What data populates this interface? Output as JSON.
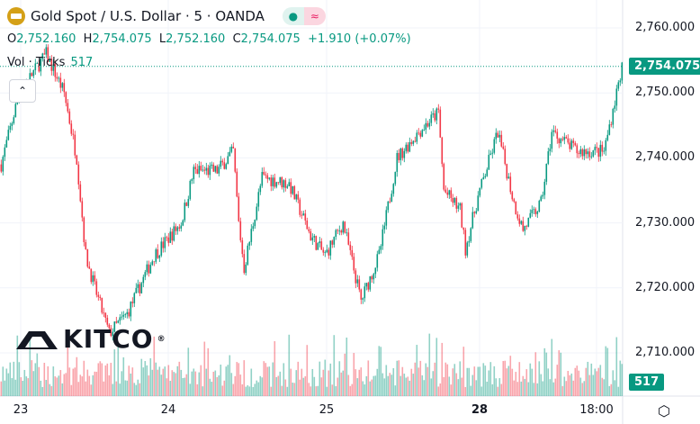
{
  "header": {
    "symbol": "Gold Spot / U.S. Dollar · 5 · OANDA",
    "open_label": "O",
    "open": "2,752.160",
    "high_label": "H",
    "high": "2,754.075",
    "low_label": "L",
    "low": "2,752.160",
    "close_label": "C",
    "close": "2,754.075",
    "change": "+1.910 (+0.07%)",
    "vol_label": "Vol · Ticks",
    "vol_value": "517",
    "market_dot": "●",
    "indicator_glyph": "≈"
  },
  "colors": {
    "up": "#089981",
    "down": "#f23645"
  },
  "watermark": "KITCO",
  "chart_data": {
    "type": "candlestick",
    "title": "Gold Spot / U.S. Dollar · 5 · OANDA",
    "ylim": [
      2704,
      2764
    ],
    "y_ticks": [
      "2,760.000",
      "2,750.000",
      "2,740.000",
      "2,730.000",
      "2,720.000",
      "2,710.000"
    ],
    "y_tick_values": [
      2760,
      2750,
      2740,
      2730,
      2720,
      2710
    ],
    "x_ticks": [
      "23",
      "24",
      "25",
      "28",
      "18:00"
    ],
    "x_tick_bars": [
      11,
      93,
      181,
      266,
      331
    ],
    "last_price": "2,754.075",
    "last_price_value": 2754.075,
    "last_volume": "517",
    "price_path": [
      [
        0,
        2739
      ],
      [
        10,
        2750
      ],
      [
        25,
        2756
      ],
      [
        35,
        2750
      ],
      [
        42,
        2740
      ],
      [
        47,
        2725
      ],
      [
        52,
        2720
      ],
      [
        60,
        2713
      ],
      [
        70,
        2716
      ],
      [
        85,
        2725
      ],
      [
        100,
        2730
      ],
      [
        107,
        2738
      ],
      [
        120,
        2738
      ],
      [
        129,
        2741
      ],
      [
        132,
        2730
      ],
      [
        135,
        2723
      ],
      [
        145,
        2737
      ],
      [
        160,
        2736
      ],
      [
        172,
        2728
      ],
      [
        180,
        2725
      ],
      [
        190,
        2730
      ],
      [
        200,
        2718
      ],
      [
        210,
        2725
      ],
      [
        220,
        2740
      ],
      [
        232,
        2744
      ],
      [
        243,
        2747
      ],
      [
        246,
        2735
      ],
      [
        255,
        2732
      ],
      [
        258,
        2726
      ],
      [
        265,
        2734
      ],
      [
        276,
        2744
      ],
      [
        285,
        2733
      ],
      [
        290,
        2729
      ],
      [
        300,
        2733
      ],
      [
        306,
        2744
      ],
      [
        320,
        2741
      ],
      [
        335,
        2741
      ],
      [
        345,
        2754
      ]
    ]
  }
}
